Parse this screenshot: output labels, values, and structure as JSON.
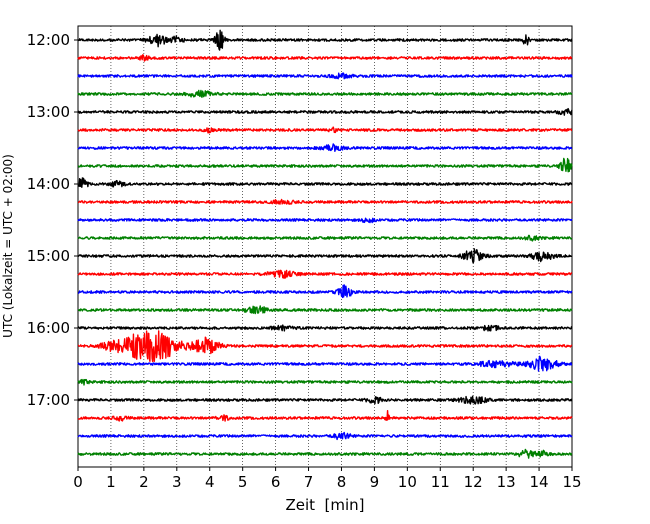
{
  "chart_data": {
    "type": "line",
    "title": "",
    "xlabel": "Zeit  [min]",
    "ylabel": "UTC (Lokalzeit = UTC + 02:00)",
    "x_ticks": [
      0,
      1,
      2,
      3,
      4,
      5,
      6,
      7,
      8,
      9,
      10,
      11,
      12,
      13,
      14,
      15
    ],
    "xlim": [
      0,
      15
    ],
    "y_ticks": [
      "12:00",
      "13:00",
      "14:00",
      "15:00",
      "16:00",
      "17:00"
    ],
    "y_tick_rows": [
      0,
      4,
      8,
      12,
      16,
      20
    ],
    "grid": "vertical dotted at each minute",
    "colors": {
      "black": "#000000",
      "red": "#ff0000",
      "blue": "#0000ff",
      "green": "#008000"
    },
    "trace_interval_min": 15,
    "traces": [
      {
        "start_utc": "12:00",
        "color": "black",
        "events": [
          {
            "t": 2.4,
            "a": 6,
            "w": 0.25
          },
          {
            "t": 3.0,
            "a": 3,
            "w": 0.2
          },
          {
            "t": 4.3,
            "a": 14,
            "w": 0.12
          },
          {
            "t": 13.6,
            "a": 6,
            "w": 0.08
          }
        ]
      },
      {
        "start_utc": "12:15",
        "color": "red",
        "events": [
          {
            "t": 2.0,
            "a": 2,
            "w": 0.2
          }
        ]
      },
      {
        "start_utc": "12:30",
        "color": "blue",
        "events": [
          {
            "t": 8.0,
            "a": 2,
            "w": 0.3
          }
        ]
      },
      {
        "start_utc": "12:45",
        "color": "green",
        "events": [
          {
            "t": 3.7,
            "a": 3,
            "w": 0.35
          }
        ]
      },
      {
        "start_utc": "13:00",
        "color": "black",
        "events": [
          {
            "t": 14.8,
            "a": 3,
            "w": 0.2
          }
        ]
      },
      {
        "start_utc": "13:15",
        "color": "red",
        "events": [
          {
            "t": 4.0,
            "a": 2,
            "w": 0.15
          },
          {
            "t": 7.8,
            "a": 2,
            "w": 0.15
          }
        ]
      },
      {
        "start_utc": "13:30",
        "color": "blue",
        "events": [
          {
            "t": 7.7,
            "a": 3,
            "w": 0.3
          }
        ]
      },
      {
        "start_utc": "13:45",
        "color": "green",
        "events": [
          {
            "t": 14.8,
            "a": 9,
            "w": 0.15
          }
        ]
      },
      {
        "start_utc": "14:00",
        "color": "black",
        "events": [
          {
            "t": 0.1,
            "a": 5,
            "w": 0.2
          },
          {
            "t": 1.2,
            "a": 3,
            "w": 0.2
          }
        ]
      },
      {
        "start_utc": "14:15",
        "color": "red",
        "events": [
          {
            "t": 6.2,
            "a": 2,
            "w": 0.3
          }
        ]
      },
      {
        "start_utc": "14:30",
        "color": "blue",
        "events": [
          {
            "t": 8.8,
            "a": 2,
            "w": 0.2
          }
        ]
      },
      {
        "start_utc": "14:45",
        "color": "green",
        "events": [
          {
            "t": 13.8,
            "a": 2,
            "w": 0.2
          }
        ]
      },
      {
        "start_utc": "15:00",
        "color": "black",
        "events": [
          {
            "t": 12.0,
            "a": 6,
            "w": 0.3
          },
          {
            "t": 14.1,
            "a": 5,
            "w": 0.3
          }
        ]
      },
      {
        "start_utc": "15:15",
        "color": "red",
        "events": [
          {
            "t": 6.2,
            "a": 3,
            "w": 0.4
          }
        ]
      },
      {
        "start_utc": "15:30",
        "color": "blue",
        "events": [
          {
            "t": 8.1,
            "a": 6,
            "w": 0.2
          }
        ]
      },
      {
        "start_utc": "15:45",
        "color": "green",
        "events": [
          {
            "t": 5.4,
            "a": 4,
            "w": 0.3
          }
        ]
      },
      {
        "start_utc": "16:00",
        "color": "black",
        "events": [
          {
            "t": 6.2,
            "a": 2,
            "w": 0.3
          },
          {
            "t": 12.5,
            "a": 2,
            "w": 0.3
          }
        ]
      },
      {
        "start_utc": "16:15",
        "color": "red",
        "events": [
          {
            "t": 2.2,
            "a": 16,
            "w": 0.8
          },
          {
            "t": 3.9,
            "a": 8,
            "w": 0.35
          },
          {
            "t": 1.0,
            "a": 4,
            "w": 0.3
          }
        ]
      },
      {
        "start_utc": "16:30",
        "color": "blue",
        "events": [
          {
            "t": 12.7,
            "a": 3,
            "w": 0.5
          },
          {
            "t": 14.1,
            "a": 7,
            "w": 0.4
          }
        ]
      },
      {
        "start_utc": "16:45",
        "color": "green",
        "events": [
          {
            "t": 0.2,
            "a": 2,
            "w": 0.15
          }
        ]
      },
      {
        "start_utc": "17:00",
        "color": "black",
        "events": [
          {
            "t": 9.0,
            "a": 3,
            "w": 0.2
          },
          {
            "t": 12.0,
            "a": 3,
            "w": 0.4
          }
        ]
      },
      {
        "start_utc": "17:15",
        "color": "red",
        "events": [
          {
            "t": 1.3,
            "a": 2,
            "w": 0.2
          },
          {
            "t": 4.4,
            "a": 3,
            "w": 0.15
          },
          {
            "t": 9.4,
            "a": 7,
            "w": 0.05
          }
        ]
      },
      {
        "start_utc": "17:30",
        "color": "blue",
        "events": [
          {
            "t": 8.0,
            "a": 3,
            "w": 0.25
          }
        ]
      },
      {
        "start_utc": "17:45",
        "color": "green",
        "events": [
          {
            "t": 13.6,
            "a": 4,
            "w": 0.2
          },
          {
            "t": 14.1,
            "a": 3,
            "w": 0.2
          }
        ]
      }
    ]
  }
}
